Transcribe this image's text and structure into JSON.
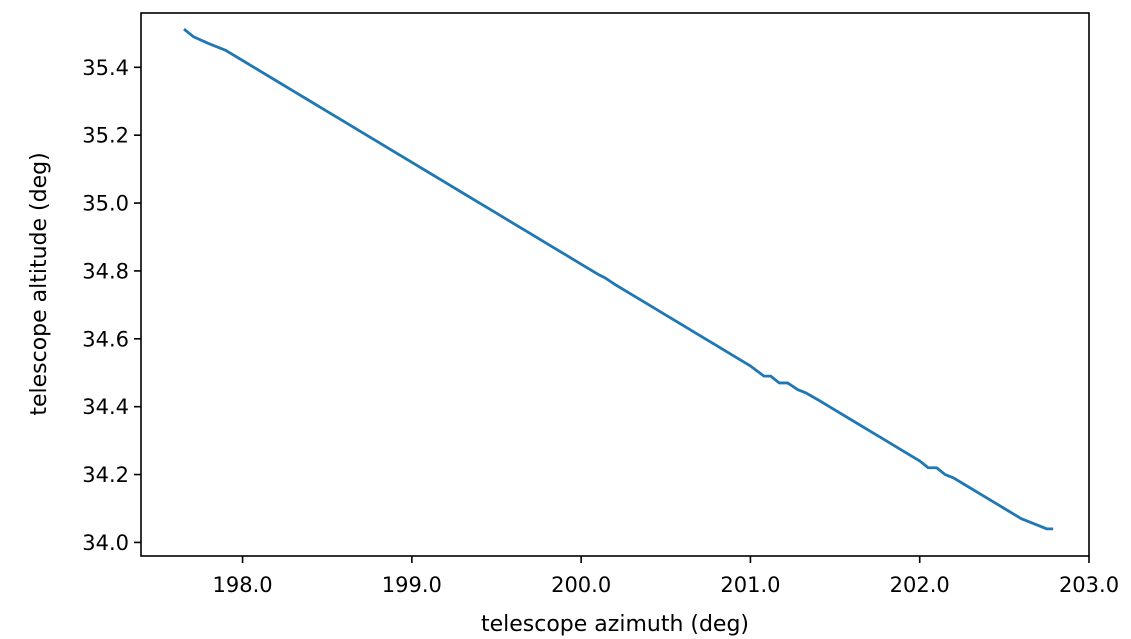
{
  "chart_data": {
    "type": "line",
    "title": "",
    "xlabel": "telescope azimuth (deg)",
    "ylabel": "telescope altitude (deg)",
    "xlim": [
      197.4,
      203.0
    ],
    "ylim": [
      33.96,
      35.56
    ],
    "xticks": [
      198.0,
      199.0,
      200.0,
      201.0,
      202.0,
      203.0
    ],
    "xtick_labels": [
      "198.0",
      "199.0",
      "200.0",
      "201.0",
      "202.0",
      "203.0"
    ],
    "yticks": [
      34.0,
      34.2,
      34.4,
      34.6,
      34.8,
      35.0,
      35.2,
      35.4
    ],
    "ytick_labels": [
      "34.0",
      "34.2",
      "34.4",
      "34.6",
      "34.8",
      "35.0",
      "35.2",
      "35.4"
    ],
    "grid": false,
    "legend": "none",
    "series": [
      {
        "color": "#1f77b4",
        "x": [
          197.66,
          197.71,
          197.8,
          197.9,
          198.0,
          198.1,
          198.2,
          198.3,
          198.4,
          198.5,
          198.6,
          198.7,
          198.8,
          198.9,
          199.0,
          199.1,
          199.2,
          199.3,
          199.4,
          199.5,
          199.6,
          199.7,
          199.8,
          199.9,
          200.0,
          200.1,
          200.14,
          200.2,
          200.3,
          200.4,
          200.5,
          200.6,
          200.7,
          200.8,
          200.9,
          201.0,
          201.08,
          201.12,
          201.17,
          201.22,
          201.28,
          201.33,
          201.4,
          201.5,
          201.6,
          201.7,
          201.8,
          201.9,
          202.0,
          202.05,
          202.1,
          202.15,
          202.2,
          202.3,
          202.4,
          202.5,
          202.6,
          202.65,
          202.7,
          202.75,
          202.78
        ],
        "y": [
          35.51,
          35.49,
          35.47,
          35.45,
          35.42,
          35.39,
          35.36,
          35.33,
          35.3,
          35.27,
          35.24,
          35.21,
          35.18,
          35.15,
          35.12,
          35.09,
          35.06,
          35.03,
          35.0,
          34.97,
          34.94,
          34.91,
          34.88,
          34.85,
          34.82,
          34.79,
          34.78,
          34.76,
          34.73,
          34.7,
          34.67,
          34.64,
          34.61,
          34.58,
          34.55,
          34.52,
          34.49,
          34.49,
          34.47,
          34.47,
          34.45,
          34.44,
          34.42,
          34.39,
          34.36,
          34.33,
          34.3,
          34.27,
          34.24,
          34.22,
          34.22,
          34.2,
          34.19,
          34.16,
          34.13,
          34.1,
          34.07,
          34.06,
          34.05,
          34.04,
          34.04
        ]
      }
    ]
  }
}
